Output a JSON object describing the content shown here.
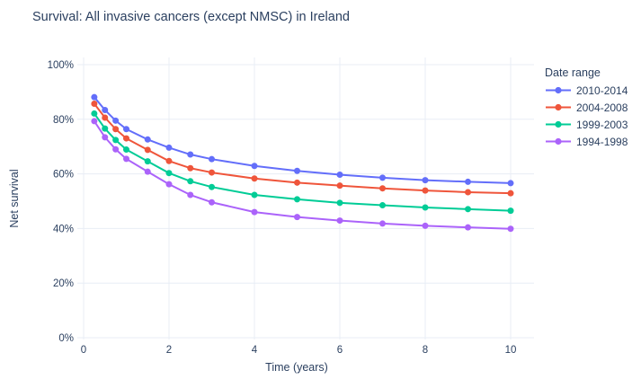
{
  "colors": {
    "text": "#2a3f5f",
    "grid": "#e8edf5",
    "background": "#ffffff"
  },
  "chart_data": {
    "type": "line",
    "title": "Survival: All invasive cancers (except NMSC) in Ireland",
    "xlabel": "Time (years)",
    "ylabel": "Net survival",
    "legend_title": "Date range",
    "legend_position": "right",
    "grid": true,
    "ylim": [
      0,
      100
    ],
    "xlim": [
      0,
      10.5
    ],
    "x_ticks": [
      0,
      2,
      4,
      6,
      8,
      10
    ],
    "y_ticks": [
      0,
      20,
      40,
      60,
      80,
      100
    ],
    "y_tick_suffix": "%",
    "x": [
      0.25,
      0.5,
      0.75,
      1,
      1.5,
      2,
      2.5,
      3,
      4,
      5,
      6,
      7,
      8,
      9,
      10
    ],
    "series": [
      {
        "name": "2010-2014",
        "color": "#636efa",
        "values": [
          88.1,
          83.4,
          79.5,
          76.4,
          72.6,
          69.6,
          67.1,
          65.4,
          62.9,
          61.1,
          59.7,
          58.6,
          57.7,
          57.1,
          56.6
        ]
      },
      {
        "name": "2004-2008",
        "color": "#ef553b",
        "values": [
          85.7,
          80.6,
          76.4,
          73.0,
          68.8,
          64.7,
          62.1,
          60.5,
          58.3,
          56.8,
          55.7,
          54.7,
          53.9,
          53.3,
          52.9
        ]
      },
      {
        "name": "1999-2003",
        "color": "#00cc96",
        "values": [
          82.1,
          76.6,
          72.4,
          68.9,
          64.6,
          60.3,
          57.3,
          55.2,
          52.3,
          50.7,
          49.4,
          48.5,
          47.7,
          47.1,
          46.5
        ]
      },
      {
        "name": "1994-1998",
        "color": "#ab63fa",
        "values": [
          79.3,
          73.4,
          69.0,
          65.5,
          60.8,
          56.2,
          52.3,
          49.6,
          46.0,
          44.2,
          42.9,
          41.8,
          41.0,
          40.4,
          39.9
        ]
      }
    ]
  }
}
